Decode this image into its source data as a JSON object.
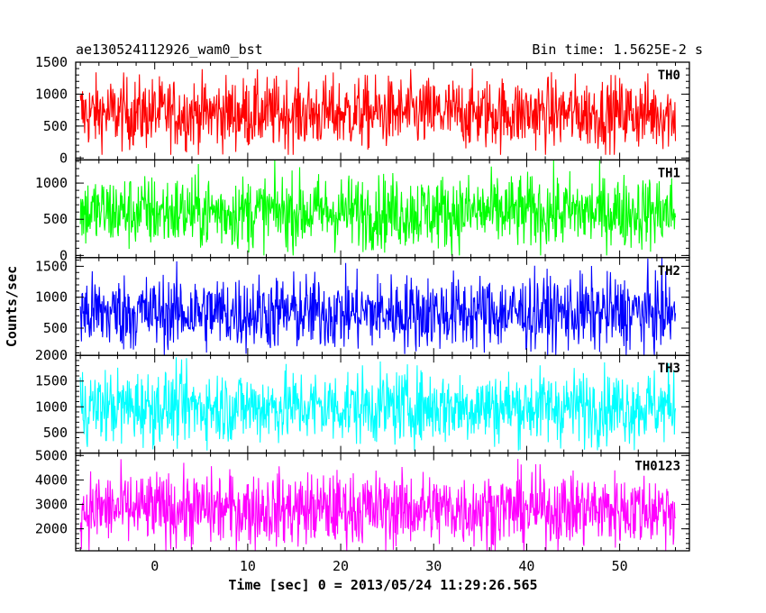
{
  "header": {
    "left_title": "ae130524112926_wam0_bst",
    "right_title": "Bin time: 1.5625E-2 s"
  },
  "axes": {
    "xlabel": "Time [sec] 0 = 2013/05/24 11:29:26.565",
    "ylabel": "Counts/sec"
  },
  "chart_data": {
    "type": "line",
    "title": "ae130524112926_wam0_bst",
    "subtitle": "Bin time: 1.5625E-2 s",
    "xlabel": "Time [sec] 0 = 2013/05/24 11:29:26.565",
    "ylabel": "Counts/sec",
    "xlim": [
      -8.5,
      57.5
    ],
    "x_range_data": [
      -8,
      56
    ],
    "bin_time": 0.015625,
    "x_ticks": [
      0,
      10,
      20,
      30,
      40,
      50
    ],
    "legend": "none",
    "grid": false,
    "panels": [
      {
        "name": "TH0",
        "color": "#ff0000",
        "ylim": [
          -30,
          1500
        ],
        "y_ticks": [
          0,
          500,
          1000,
          1500
        ],
        "mean": 700,
        "min": 50,
        "max": 1500
      },
      {
        "name": "TH1",
        "color": "#00ff00",
        "ylim": [
          -30,
          1320
        ],
        "y_ticks": [
          0,
          500,
          1000
        ],
        "mean": 600,
        "min": 0,
        "max": 1320
      },
      {
        "name": "TH2",
        "color": "#0000ff",
        "ylim": [
          60,
          1640
        ],
        "y_ticks": [
          500,
          1000,
          1500
        ],
        "mean": 750,
        "min": 60,
        "max": 1640
      },
      {
        "name": "TH3",
        "color": "#00ffff",
        "ylim": [
          100,
          2000
        ],
        "y_ticks": [
          500,
          1000,
          1500,
          2000
        ],
        "mean": 1000,
        "min": 150,
        "max": 2000
      },
      {
        "name": "TH0123",
        "color": "#ff00ff",
        "ylim": [
          1100,
          5100
        ],
        "y_ticks": [
          2000,
          3000,
          4000,
          5000
        ],
        "mean": 2800,
        "min": 1100,
        "max": 5000
      }
    ]
  }
}
